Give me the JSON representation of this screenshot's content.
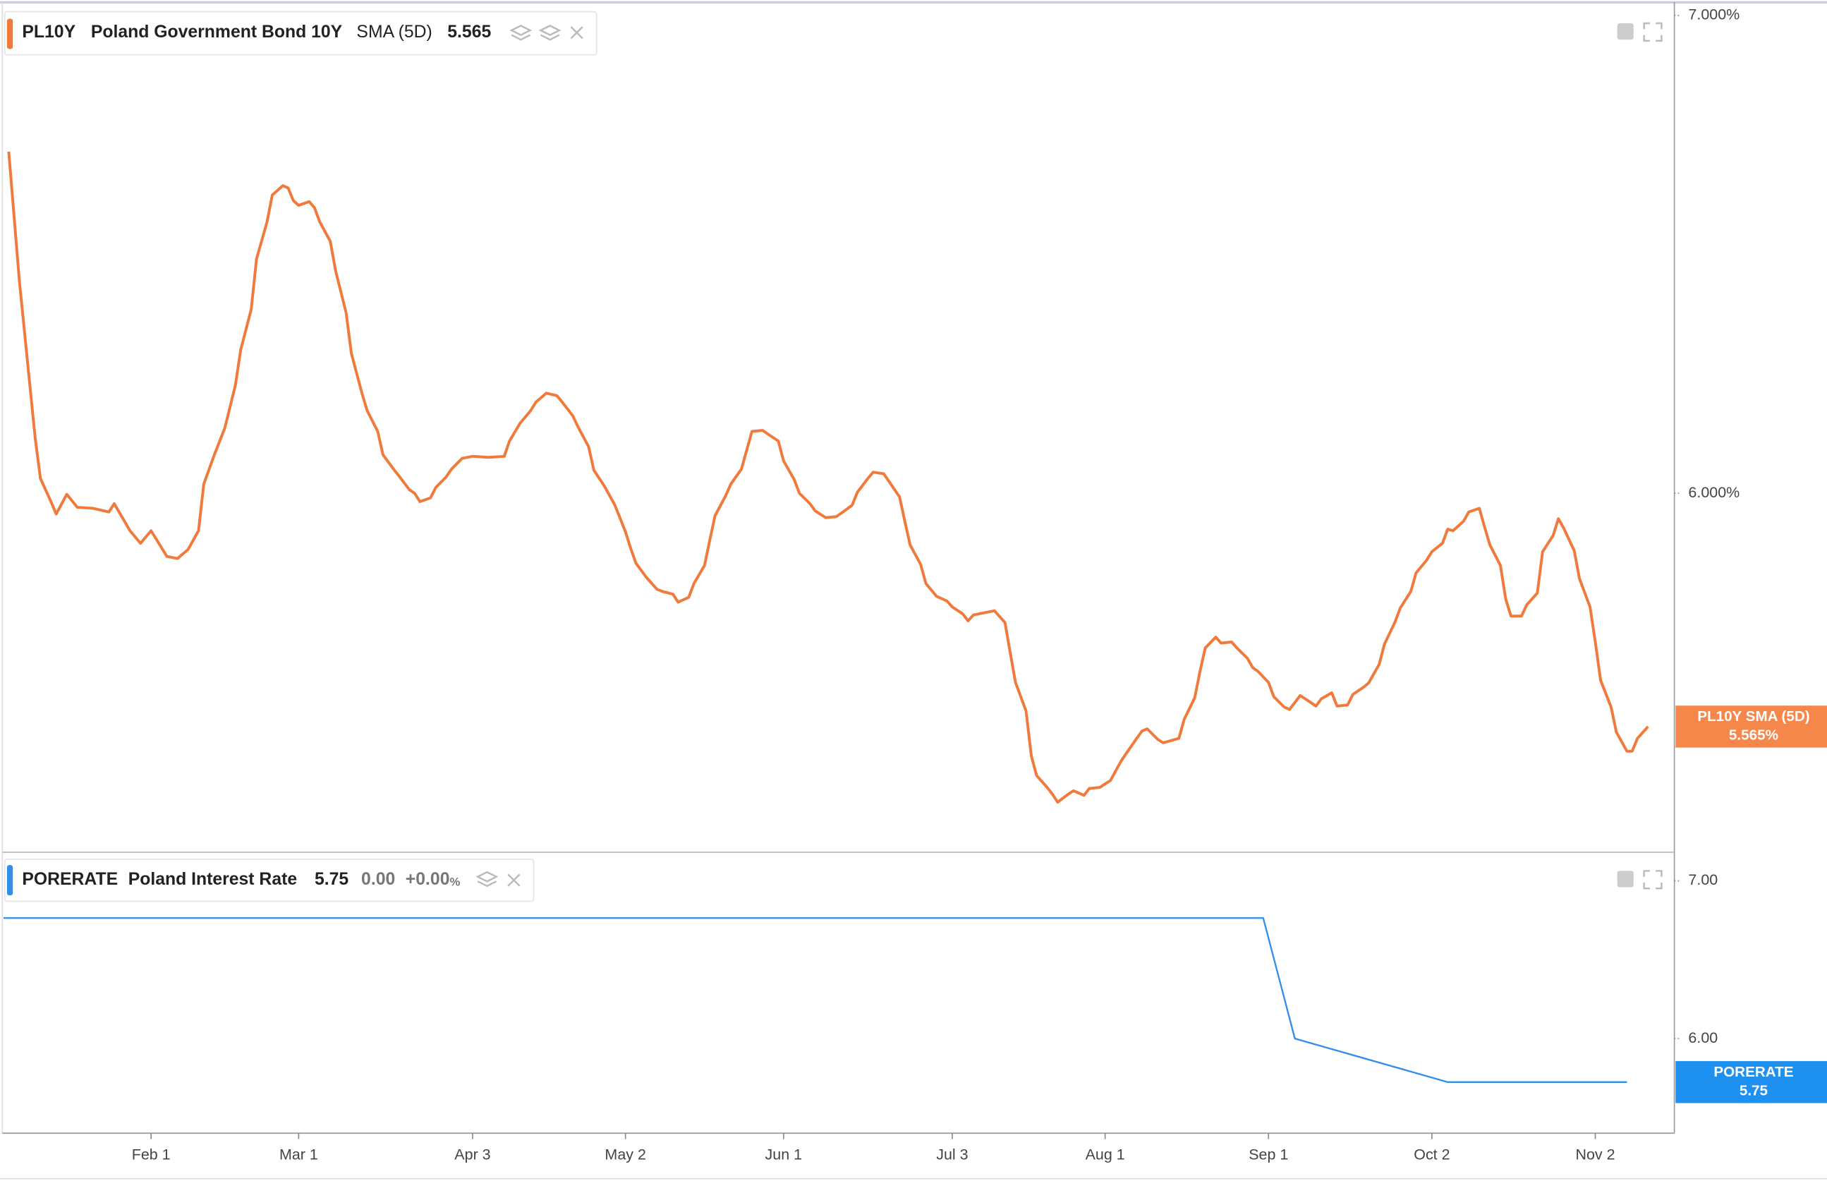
{
  "chart_data": [
    {
      "type": "line",
      "symbol": "PL10Y",
      "title": "Poland Government Bond 10Y",
      "indicator": "SMA (5D)",
      "last_value": "5.565",
      "badge_label": "5.565%",
      "log_scale": true,
      "xlim": [
        "Jan 4",
        "Nov 17"
      ],
      "ylim": [
        5.346,
        7.027
      ],
      "yticks": [
        {
          "value": 7,
          "label": "7.000%"
        },
        {
          "value": 6,
          "label": "6.000%"
        }
      ],
      "x": [
        "Jan 5",
        "Jan 7",
        "Jan 9",
        "Jan 10",
        "Jan 11",
        "Jan 13",
        "Jan 14",
        "Jan 16",
        "Jan 18",
        "Jan 21",
        "Jan 24",
        "Jan 25",
        "Jan 28",
        "Jan 30",
        "Feb 1",
        "Feb 4",
        "Feb 6",
        "Feb 8",
        "Feb 10",
        "Feb 11",
        "Feb 13",
        "Feb 15",
        "Feb 17",
        "Feb 18",
        "Feb 20",
        "Feb 21",
        "Feb 23",
        "Feb 24",
        "Feb 26",
        "Feb 27",
        "Feb 28",
        "Mar 1",
        "Mar 3",
        "Mar 4",
        "Mar 5",
        "Mar 7",
        "Mar 8",
        "Mar 10",
        "Mar 11",
        "Mar 13",
        "Mar 14",
        "Mar 16",
        "Mar 17",
        "Mar 19",
        "Mar 20",
        "Mar 22",
        "Mar 23",
        "Mar 24",
        "Mar 26",
        "Mar 27",
        "Mar 29",
        "Mar 30",
        "Apr 1",
        "Apr 3",
        "Apr 6",
        "Apr 9",
        "Apr 10",
        "Apr 12",
        "Apr 14",
        "Apr 15",
        "Apr 17",
        "Apr 19",
        "Apr 20",
        "Apr 22",
        "Apr 23",
        "Apr 25",
        "Apr 26",
        "Apr 28",
        "Apr 30",
        "May 2",
        "May 3",
        "May 4",
        "May 6",
        "May 8",
        "May 9",
        "May 11",
        "May 12",
        "May 14",
        "May 15",
        "May 17",
        "May 18",
        "May 19",
        "May 21",
        "May 22",
        "May 24",
        "May 25",
        "May 26",
        "May 28",
        "May 29",
        "May 31",
        "Jun 1",
        "Jun 3",
        "Jun 4",
        "Jun 6",
        "Jun 7",
        "Jun 9",
        "Jun 11",
        "Jun 12",
        "Jun 14",
        "Jun 15",
        "Jun 17",
        "Jun 18",
        "Jun 20",
        "Jun 21",
        "Jun 23",
        "Jun 24",
        "Jun 25",
        "Jun 27",
        "Jun 28",
        "Jun 30",
        "Jul 2",
        "Jul 3",
        "Jul 5",
        "Jul 6",
        "Jul 7",
        "Jul 9",
        "Jul 11",
        "Jul 13",
        "Jul 14",
        "Jul 15",
        "Jul 17",
        "Jul 18",
        "Jul 19",
        "Jul 21",
        "Jul 22",
        "Jul 23",
        "Jul 25",
        "Jul 26",
        "Jul 28",
        "Jul 29",
        "Jul 31",
        "Aug 1",
        "Aug 2",
        "Aug 4",
        "Aug 5",
        "Aug 7",
        "Aug 8",
        "Aug 9",
        "Aug 11",
        "Aug 12",
        "Aug 15",
        "Aug 16",
        "Aug 18",
        "Aug 19",
        "Aug 20",
        "Aug 22",
        "Aug 23",
        "Aug 25",
        "Aug 26",
        "Aug 28",
        "Aug 29",
        "Aug 30",
        "Sep 1",
        "Sep 2",
        "Sep 4",
        "Sep 5",
        "Sep 7",
        "Sep 8",
        "Sep 10",
        "Sep 11",
        "Sep 13",
        "Sep 14",
        "Sep 16",
        "Sep 17",
        "Sep 19",
        "Sep 20",
        "Sep 22",
        "Sep 23",
        "Sep 25",
        "Sep 26",
        "Sep 28",
        "Sep 29",
        "Oct 1",
        "Oct 2",
        "Oct 4",
        "Oct 5",
        "Oct 6",
        "Oct 8",
        "Oct 9",
        "Oct 11",
        "Oct 12",
        "Oct 13",
        "Oct 15",
        "Oct 16",
        "Oct 17",
        "Oct 19",
        "Oct 20",
        "Oct 22",
        "Oct 23",
        "Oct 25",
        "Oct 26",
        "Oct 27",
        "Oct 29",
        "Oct 30",
        "Nov 1",
        "Nov 2",
        "Nov 3",
        "Nov 5",
        "Nov 6",
        "Nov 8",
        "Nov 9",
        "Nov 10",
        "Nov 12"
      ],
      "series": [
        {
          "name": "PL10Y SMA (5D)",
          "color": "#f07a3c",
          "values": [
            6.699,
            6.427,
            6.213,
            6.109,
            6.029,
            5.984,
            5.96,
            5.998,
            5.973,
            5.971,
            5.964,
            5.98,
            5.928,
            5.904,
            5.928,
            5.879,
            5.875,
            5.892,
            5.928,
            6.018,
            6.075,
            6.128,
            6.213,
            6.284,
            6.367,
            6.471,
            6.549,
            6.606,
            6.626,
            6.621,
            6.594,
            6.584,
            6.592,
            6.579,
            6.549,
            6.508,
            6.447,
            6.36,
            6.277,
            6.197,
            6.162,
            6.121,
            6.075,
            6.047,
            6.034,
            6.007,
            6.0,
            5.984,
            5.991,
            6.011,
            6.032,
            6.047,
            6.068,
            6.072,
            6.07,
            6.072,
            6.102,
            6.137,
            6.162,
            6.179,
            6.197,
            6.192,
            6.179,
            6.152,
            6.13,
            6.091,
            6.045,
            6.014,
            5.977,
            5.926,
            5.894,
            5.866,
            5.839,
            5.817,
            5.813,
            5.808,
            5.793,
            5.802,
            5.828,
            5.862,
            5.91,
            5.957,
            5.995,
            6.018,
            6.047,
            6.084,
            6.121,
            6.123,
            6.116,
            6.102,
            6.063,
            6.027,
            6.0,
            5.98,
            5.966,
            5.953,
            5.955,
            5.962,
            5.977,
            6.002,
            6.029,
            6.041,
            6.038,
            6.023,
            5.993,
            5.946,
            5.901,
            5.864,
            5.828,
            5.804,
            5.795,
            5.784,
            5.771,
            5.758,
            5.769,
            5.773,
            5.777,
            5.755,
            5.699,
            5.645,
            5.593,
            5.513,
            5.478,
            5.457,
            5.445,
            5.431,
            5.445,
            5.451,
            5.443,
            5.455,
            5.457,
            5.463,
            5.469,
            5.503,
            5.517,
            5.544,
            5.557,
            5.561,
            5.542,
            5.536,
            5.544,
            5.578,
            5.617,
            5.665,
            5.708,
            5.728,
            5.717,
            5.719,
            5.708,
            5.689,
            5.672,
            5.665,
            5.645,
            5.619,
            5.6,
            5.596,
            5.621,
            5.615,
            5.602,
            5.615,
            5.626,
            5.602,
            5.604,
            5.623,
            5.636,
            5.644,
            5.678,
            5.715,
            5.756,
            5.782,
            5.813,
            5.848,
            5.872,
            5.888,
            5.904,
            5.931,
            5.928,
            5.946,
            5.964,
            5.971,
            5.935,
            5.901,
            5.862,
            5.799,
            5.767,
            5.767,
            5.788,
            5.81,
            5.888,
            5.919,
            5.951,
            5.933,
            5.89,
            5.837,
            5.784,
            5.719,
            5.649,
            5.6,
            5.555,
            5.521,
            5.521,
            5.544,
            5.565
          ]
        }
      ]
    },
    {
      "type": "line",
      "symbol": "PORERATE",
      "title": "Poland Interest Rate",
      "last_value": "5.75",
      "change": "0.00",
      "change_pct": "+0.00",
      "change_unit": "%",
      "badge_label": "5.75",
      "log_scale": true,
      "xlim": [
        "Jan 4",
        "Nov 17"
      ],
      "ylim": [
        5.47,
        7.19
      ],
      "yticks": [
        {
          "value": 7,
          "label": "7.00"
        },
        {
          "value": 6,
          "label": "6.00"
        }
      ],
      "xticks": [
        "Feb 1",
        "Mar 1",
        "Apr 3",
        "May 2",
        "Jun 1",
        "Jul 3",
        "Aug 1",
        "Sep 1",
        "Oct 2",
        "Nov 2"
      ],
      "x": [
        "Jan 4",
        "Aug 31",
        "Sep 6",
        "Oct 5",
        "Nov 8"
      ],
      "series": [
        {
          "name": "PORERATE",
          "color": "#2e8ee8",
          "values": [
            6.75,
            6.75,
            6.0,
            5.75,
            5.75
          ]
        }
      ]
    }
  ]
}
